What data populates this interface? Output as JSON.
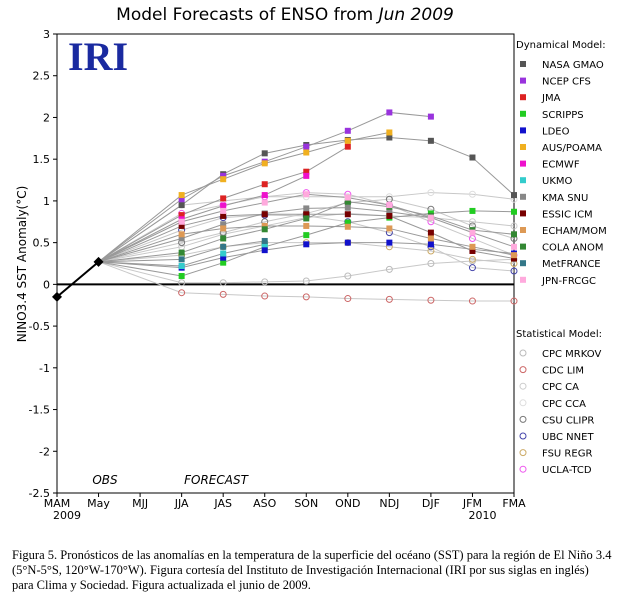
{
  "title_prefix": "Model Forecasts of ENSO from ",
  "title_month": "Jun 2009",
  "logo_text": "IRI",
  "caption": "Figura 5. Pronósticos de las anomalías en la temperatura de la superficie del océano (SST) para la región de El Niño 3.4 (5°N-5°S, 120°W-170°W). Figura cortesía del Instituto de Investigación Internacional (IRI por sus siglas en inglés) para Clima y Sociedad. Figura actualizada el junio de 2009.",
  "chart_data": {
    "type": "line",
    "title": "Model Forecasts of ENSO from Jun 2009",
    "ylabel": "NINO3.4 SST Anomaly(°C)",
    "xlabel": "",
    "ylim": [
      -2.5,
      3
    ],
    "yticks": [
      -2.5,
      -2,
      -1.5,
      -1,
      -0.5,
      0,
      0.5,
      1,
      1.5,
      2,
      2.5,
      3
    ],
    "ytick_labels": [
      "-2.5",
      "-2",
      "-1.5",
      "-1",
      "-0.5",
      "0",
      "0.5",
      "1",
      "1.5",
      "2",
      "2.5",
      "3"
    ],
    "categories": [
      "MAM",
      "May",
      "MJJ",
      "JJA",
      "JAS",
      "ASO",
      "SON",
      "OND",
      "NDJ",
      "DJF",
      "JFM",
      "FMA"
    ],
    "year_labels": [
      {
        "category": "MAM",
        "text": "2009"
      },
      {
        "category": "JFM",
        "text": "2010"
      }
    ],
    "annotations": {
      "obs": "OBS",
      "forecast": "FORECAST"
    },
    "observed": {
      "categories": [
        "MAM",
        "May"
      ],
      "values": [
        -0.15,
        0.27
      ],
      "color": "#000000"
    },
    "legend_position": "right",
    "legend_dynamical_title": "Dynamical Model:",
    "legend_statistical_title": "Statistical Model:",
    "dynamical": [
      {
        "name": "NASA GMAO",
        "color": "#555555",
        "values": [
          0.95,
          1.32,
          1.57,
          1.67,
          1.73,
          1.76,
          1.72,
          1.52,
          1.07
        ]
      },
      {
        "name": "NCEP CFS",
        "color": "#9933dd",
        "values": [
          1.02,
          1.3,
          1.47,
          1.65,
          1.84,
          2.06,
          2.01,
          null,
          null
        ]
      },
      {
        "name": "JMA",
        "color": "#dd2222",
        "values": [
          0.83,
          1.03,
          1.2,
          1.35,
          1.65,
          null,
          null,
          null,
          null
        ]
      },
      {
        "name": "SCRIPPS",
        "color": "#22cc22",
        "values": [
          0.1,
          0.26,
          0.45,
          0.59,
          0.74,
          0.8,
          0.85,
          0.88,
          0.87
        ]
      },
      {
        "name": "LDEO",
        "color": "#1111cc",
        "values": [
          0.2,
          0.32,
          0.41,
          0.48,
          0.5,
          0.5,
          0.48,
          0.42,
          0.37
        ]
      },
      {
        "name": "AUS/POAMA",
        "color": "#f0b020",
        "values": [
          1.07,
          1.26,
          1.45,
          1.58,
          1.72,
          1.82,
          null,
          null,
          null
        ]
      },
      {
        "name": "ECMWF",
        "color": "#ee11cc",
        "values": [
          0.78,
          0.94,
          1.07,
          1.3,
          null,
          null,
          null,
          null,
          null
        ]
      },
      {
        "name": "UKMO",
        "color": "#33cccc",
        "values": [
          0.22,
          0.37,
          0.48,
          null,
          null,
          null,
          null,
          null,
          null
        ]
      },
      {
        "name": "KMA SNU",
        "color": "#888888",
        "values": [
          0.55,
          0.72,
          0.85,
          0.91,
          0.92,
          0.87,
          0.8,
          null,
          null
        ]
      },
      {
        "name": "ESSIC ICM",
        "color": "#770000",
        "values": [
          0.7,
          0.82,
          0.84,
          0.84,
          0.84,
          0.82,
          0.62,
          0.4,
          0.31
        ]
      },
      {
        "name": "ECHAM/MOM",
        "color": "#dd9955",
        "values": [
          0.6,
          0.67,
          0.7,
          0.7,
          0.69,
          0.67,
          0.55,
          0.45,
          0.35
        ]
      },
      {
        "name": "COLA ANOM",
        "color": "#338833",
        "values": [
          0.38,
          0.55,
          0.66,
          0.79,
          0.99,
          0.93,
          0.82,
          0.65,
          0.6
        ]
      },
      {
        "name": "MetFRANCE",
        "color": "#337788",
        "values": [
          0.3,
          0.45,
          0.52,
          null,
          null,
          null,
          null,
          null,
          null
        ]
      },
      {
        "name": "JPN-FRCGC",
        "color": "#ffaadd",
        "values": [
          0.75,
          0.88,
          0.98,
          1.08,
          1.04,
          0.95,
          0.8,
          0.62,
          0.45
        ]
      }
    ],
    "statistical": [
      {
        "name": "CPC MRKOV",
        "color": "#bbbbbb",
        "values": [
          0.02,
          0.02,
          0.03,
          0.04,
          0.1,
          0.18,
          0.25,
          0.28,
          0.3
        ]
      },
      {
        "name": "CDC LIM",
        "color": "#cc6666",
        "values": [
          -0.1,
          -0.12,
          -0.14,
          -0.15,
          -0.17,
          -0.18,
          -0.19,
          -0.2,
          -0.2
        ]
      },
      {
        "name": "CPC CA",
        "color": "#cccccc",
        "values": [
          0.45,
          0.6,
          0.7,
          0.8,
          0.85,
          0.82,
          0.8,
          0.75,
          0.7
        ]
      },
      {
        "name": "CPC CCA",
        "color": "#dddddd",
        "values": [
          0.95,
          1.0,
          1.05,
          1.05,
          1.05,
          1.05,
          1.1,
          1.08,
          1.02
        ]
      },
      {
        "name": "CSU CLIPR",
        "color": "#777777",
        "values": [
          0.5,
          0.62,
          0.75,
          0.85,
          0.98,
          1.02,
          0.9,
          0.7,
          0.55
        ]
      },
      {
        "name": "UBC NNET",
        "color": "#4444aa",
        "values": [
          0.65,
          0.8,
          0.83,
          0.82,
          0.75,
          0.62,
          0.45,
          0.2,
          0.16
        ]
      },
      {
        "name": "FSU REGR",
        "color": "#ccaa66",
        "values": [
          0.35,
          0.45,
          0.5,
          0.5,
          0.5,
          0.45,
          0.4,
          0.3,
          0.25
        ]
      },
      {
        "name": "UCLA-TCD",
        "color": "#ee55ee",
        "values": [
          0.85,
          0.95,
          1.05,
          1.1,
          1.08,
          0.95,
          0.75,
          0.55,
          0.35
        ]
      }
    ]
  }
}
